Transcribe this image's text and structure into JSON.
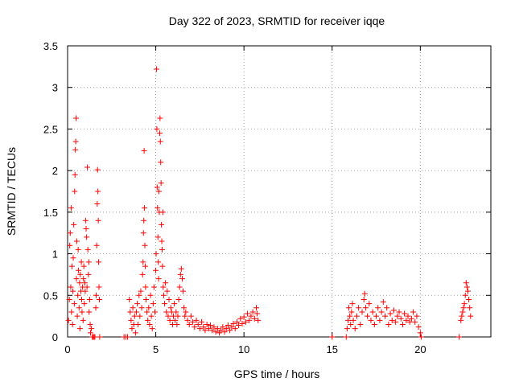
{
  "chart_data": {
    "type": "scatter",
    "title": "Day 322 of 2023, SRMTID for receiver iqqe",
    "xlabel": "GPS time / hours",
    "ylabel": "SRMTID / TECUs",
    "xlim": [
      0,
      24
    ],
    "ylim": [
      0,
      3.5
    ],
    "xticks": [
      0,
      5,
      10,
      15,
      20
    ],
    "yticks": [
      0,
      0.5,
      1,
      1.5,
      2,
      2.5,
      3,
      3.5
    ],
    "xtick_labels": [
      "0",
      "5",
      "10",
      "15",
      "20"
    ],
    "ytick_labels": [
      "0",
      "0.5",
      "1",
      "1.5",
      "2",
      "2.5",
      "3",
      "3.5"
    ],
    "grid": true,
    "marker": "plus",
    "color": "#ff0000",
    "series": [
      {
        "name": "iqqe",
        "points": [
          [
            0.05,
            0.2
          ],
          [
            0.1,
            0.45
          ],
          [
            0.12,
            1.1
          ],
          [
            0.15,
            1.25
          ],
          [
            0.18,
            0.6
          ],
          [
            0.2,
            1.55
          ],
          [
            0.22,
            0.3
          ],
          [
            0.25,
            0.85
          ],
          [
            0.28,
            0.15
          ],
          [
            0.3,
            0.55
          ],
          [
            0.32,
            0.95
          ],
          [
            0.35,
            1.35
          ],
          [
            0.38,
            0.4
          ],
          [
            0.4,
            1.75
          ],
          [
            0.42,
            1.95
          ],
          [
            0.44,
            2.25
          ],
          [
            0.46,
            2.35
          ],
          [
            0.48,
            2.63
          ],
          [
            0.5,
            0.7
          ],
          [
            0.52,
            1.15
          ],
          [
            0.55,
            0.25
          ],
          [
            0.58,
            0.5
          ],
          [
            0.6,
            1.05
          ],
          [
            0.62,
            0.8
          ],
          [
            0.65,
            0.35
          ],
          [
            0.68,
            0.65
          ],
          [
            0.7,
            0.1
          ],
          [
            0.72,
            0.75
          ],
          [
            0.75,
            0.55
          ],
          [
            0.78,
            0.9
          ],
          [
            0.8,
            0.45
          ],
          [
            0.82,
            0.3
          ],
          [
            0.85,
            0.6
          ],
          [
            0.88,
            0.2
          ],
          [
            0.9,
            0.7
          ],
          [
            0.92,
            0.85
          ],
          [
            0.95,
            0.4
          ],
          [
            0.98,
            0.65
          ],
          [
            1.0,
            0.55
          ],
          [
            1.02,
            1.4
          ],
          [
            1.05,
            1.3
          ],
          [
            1.08,
            1.2
          ],
          [
            1.1,
            0.6
          ],
          [
            1.12,
            2.04
          ],
          [
            1.15,
            1.05
          ],
          [
            1.18,
            0.75
          ],
          [
            1.2,
            0.9
          ],
          [
            1.22,
            0.3
          ],
          [
            1.25,
            0.45
          ],
          [
            1.28,
            0.15
          ],
          [
            1.3,
            0.05
          ],
          [
            1.35,
            0.1
          ],
          [
            1.4,
            0.0
          ],
          [
            1.45,
            0.0
          ],
          [
            1.5,
            0.0
          ],
          [
            1.55,
            0.0
          ],
          [
            1.6,
            0.35
          ],
          [
            1.62,
            0.5
          ],
          [
            1.65,
            1.1
          ],
          [
            1.68,
            1.6
          ],
          [
            1.7,
            2.01
          ],
          [
            1.72,
            1.75
          ],
          [
            1.74,
            1.4
          ],
          [
            1.76,
            0.9
          ],
          [
            1.78,
            0.6
          ],
          [
            1.8,
            0.45
          ],
          [
            1.82,
            0.0
          ],
          [
            3.2,
            0.0
          ],
          [
            3.3,
            0.0
          ],
          [
            3.4,
            0.0
          ],
          [
            3.5,
            0.45
          ],
          [
            3.55,
            0.3
          ],
          [
            3.6,
            0.2
          ],
          [
            3.65,
            0.1
          ],
          [
            3.7,
            0.35
          ],
          [
            3.75,
            0.15
          ],
          [
            3.8,
            0.25
          ],
          [
            3.85,
            0.05
          ],
          [
            3.9,
            0.3
          ],
          [
            3.95,
            0.4
          ],
          [
            4.0,
            0.15
          ],
          [
            4.05,
            0.5
          ],
          [
            4.1,
            0.25
          ],
          [
            4.15,
            0.55
          ],
          [
            4.2,
            0.35
          ],
          [
            4.25,
            0.75
          ],
          [
            4.28,
            0.9
          ],
          [
            4.3,
            1.25
          ],
          [
            4.32,
            1.4
          ],
          [
            4.34,
            2.24
          ],
          [
            4.36,
            1.55
          ],
          [
            4.38,
            1.1
          ],
          [
            4.4,
            0.85
          ],
          [
            4.42,
            0.6
          ],
          [
            4.45,
            0.45
          ],
          [
            4.5,
            0.3
          ],
          [
            4.55,
            0.2
          ],
          [
            4.6,
            0.35
          ],
          [
            4.65,
            0.15
          ],
          [
            4.7,
            0.5
          ],
          [
            4.75,
            0.25
          ],
          [
            4.8,
            0.1
          ],
          [
            4.85,
            0.4
          ],
          [
            4.9,
            0.6
          ],
          [
            4.95,
            0.3
          ],
          [
            5.0,
            0.8
          ],
          [
            5.02,
            1.0
          ],
          [
            5.04,
            3.22
          ],
          [
            5.06,
            2.5
          ],
          [
            5.08,
            1.8
          ],
          [
            5.1,
            1.55
          ],
          [
            5.12,
            1.2
          ],
          [
            5.14,
            0.9
          ],
          [
            5.16,
            0.7
          ],
          [
            5.18,
            1.75
          ],
          [
            5.2,
            1.5
          ],
          [
            5.22,
            2.45
          ],
          [
            5.24,
            2.63
          ],
          [
            5.26,
            2.35
          ],
          [
            5.28,
            2.1
          ],
          [
            5.3,
            1.85
          ],
          [
            5.32,
            1.35
          ],
          [
            5.34,
            1.15
          ],
          [
            5.36,
            1.05
          ],
          [
            5.38,
            0.85
          ],
          [
            5.4,
            1.5
          ],
          [
            5.42,
            0.6
          ],
          [
            5.45,
            0.5
          ],
          [
            5.5,
            0.4
          ],
          [
            5.55,
            0.65
          ],
          [
            5.6,
            0.3
          ],
          [
            5.65,
            0.55
          ],
          [
            5.7,
            0.25
          ],
          [
            5.75,
            0.45
          ],
          [
            5.8,
            0.2
          ],
          [
            5.85,
            0.35
          ],
          [
            5.9,
            0.3
          ],
          [
            5.95,
            0.15
          ],
          [
            6.0,
            0.25
          ],
          [
            6.05,
            0.4
          ],
          [
            6.1,
            0.2
          ],
          [
            6.15,
            0.3
          ],
          [
            6.2,
            0.15
          ],
          [
            6.25,
            0.25
          ],
          [
            6.3,
            0.45
          ],
          [
            6.35,
            0.6
          ],
          [
            6.4,
            0.75
          ],
          [
            6.45,
            0.82
          ],
          [
            6.5,
            0.7
          ],
          [
            6.55,
            0.55
          ],
          [
            6.6,
            0.35
          ],
          [
            6.65,
            0.25
          ],
          [
            6.7,
            0.3
          ],
          [
            6.8,
            0.2
          ],
          [
            6.9,
            0.15
          ],
          [
            7.0,
            0.25
          ],
          [
            7.1,
            0.18
          ],
          [
            7.2,
            0.12
          ],
          [
            7.3,
            0.2
          ],
          [
            7.4,
            0.15
          ],
          [
            7.5,
            0.1
          ],
          [
            7.6,
            0.18
          ],
          [
            7.7,
            0.12
          ],
          [
            7.8,
            0.08
          ],
          [
            7.9,
            0.15
          ],
          [
            8.0,
            0.1
          ],
          [
            8.1,
            0.14
          ],
          [
            8.2,
            0.08
          ],
          [
            8.3,
            0.12
          ],
          [
            8.4,
            0.06
          ],
          [
            8.5,
            0.1
          ],
          [
            8.6,
            0.05
          ],
          [
            8.7,
            0.08
          ],
          [
            8.8,
            0.12
          ],
          [
            8.9,
            0.06
          ],
          [
            9.0,
            0.1
          ],
          [
            9.1,
            0.14
          ],
          [
            9.2,
            0.08
          ],
          [
            9.3,
            0.12
          ],
          [
            9.4,
            0.16
          ],
          [
            9.5,
            0.1
          ],
          [
            9.6,
            0.18
          ],
          [
            9.7,
            0.14
          ],
          [
            9.8,
            0.22
          ],
          [
            9.9,
            0.16
          ],
          [
            10.0,
            0.24
          ],
          [
            10.1,
            0.18
          ],
          [
            10.2,
            0.28
          ],
          [
            10.3,
            0.2
          ],
          [
            10.4,
            0.25
          ],
          [
            10.5,
            0.3
          ],
          [
            10.6,
            0.22
          ],
          [
            10.7,
            0.35
          ],
          [
            10.75,
            0.28
          ],
          [
            10.8,
            0.2
          ],
          [
            15.0,
            0.0
          ],
          [
            15.8,
            0.0
          ],
          [
            15.85,
            0.1
          ],
          [
            15.9,
            0.2
          ],
          [
            15.95,
            0.35
          ],
          [
            16.0,
            0.25
          ],
          [
            16.05,
            0.15
          ],
          [
            16.1,
            0.3
          ],
          [
            16.15,
            0.4
          ],
          [
            16.2,
            0.2
          ],
          [
            16.3,
            0.1
          ],
          [
            16.4,
            0.25
          ],
          [
            16.5,
            0.35
          ],
          [
            16.6,
            0.15
          ],
          [
            16.7,
            0.3
          ],
          [
            16.8,
            0.45
          ],
          [
            16.85,
            0.52
          ],
          [
            16.9,
            0.35
          ],
          [
            17.0,
            0.25
          ],
          [
            17.1,
            0.4
          ],
          [
            17.2,
            0.2
          ],
          [
            17.3,
            0.3
          ],
          [
            17.4,
            0.15
          ],
          [
            17.5,
            0.25
          ],
          [
            17.6,
            0.35
          ],
          [
            17.7,
            0.2
          ],
          [
            17.8,
            0.3
          ],
          [
            17.9,
            0.42
          ],
          [
            18.0,
            0.25
          ],
          [
            18.1,
            0.35
          ],
          [
            18.2,
            0.15
          ],
          [
            18.3,
            0.28
          ],
          [
            18.4,
            0.2
          ],
          [
            18.5,
            0.32
          ],
          [
            18.6,
            0.18
          ],
          [
            18.7,
            0.25
          ],
          [
            18.8,
            0.3
          ],
          [
            18.9,
            0.22
          ],
          [
            19.0,
            0.15
          ],
          [
            19.1,
            0.28
          ],
          [
            19.2,
            0.2
          ],
          [
            19.3,
            0.25
          ],
          [
            19.4,
            0.18
          ],
          [
            19.5,
            0.22
          ],
          [
            19.6,
            0.3
          ],
          [
            19.7,
            0.18
          ],
          [
            19.8,
            0.25
          ],
          [
            19.9,
            0.12
          ],
          [
            20.0,
            0.05
          ],
          [
            20.05,
            0.0
          ],
          [
            22.2,
            0.0
          ],
          [
            22.3,
            0.2
          ],
          [
            22.35,
            0.25
          ],
          [
            22.4,
            0.3
          ],
          [
            22.45,
            0.35
          ],
          [
            22.5,
            0.4
          ],
          [
            22.55,
            0.5
          ],
          [
            22.6,
            0.65
          ],
          [
            22.65,
            0.6
          ],
          [
            22.7,
            0.55
          ],
          [
            22.75,
            0.45
          ],
          [
            22.8,
            0.35
          ],
          [
            22.85,
            0.25
          ]
        ]
      }
    ]
  }
}
